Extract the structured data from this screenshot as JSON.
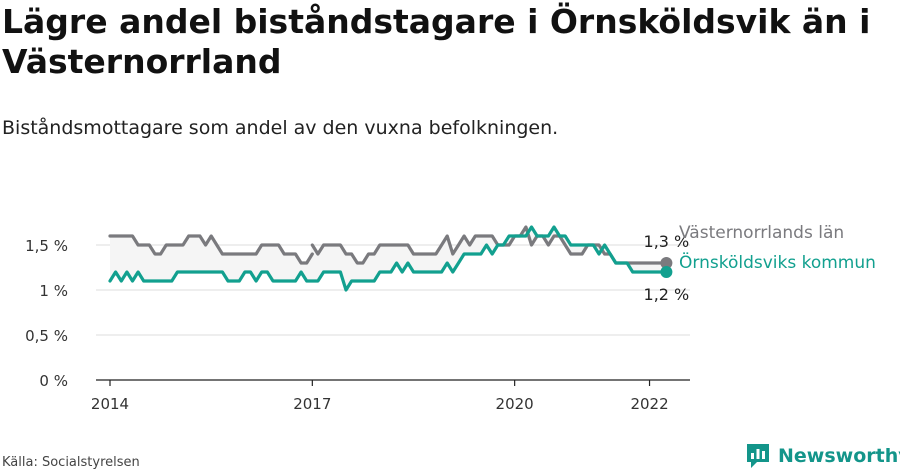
{
  "title": "Lägre andel biståndstagare i Örnsköldsvik än i Västernorrland",
  "subtitle": "Biståndsmottagare som andel av den vuxna befolkningen.",
  "source": "Källa: Socialstyrelsen",
  "brand": {
    "name": "Newsworthy",
    "icon": "newsworthy-logo-icon"
  },
  "colors": {
    "lan": "#7a7a7e",
    "kommun": "#12a08f",
    "band": "#f5f5f5",
    "grid": "#dddddd"
  },
  "chart_data": {
    "type": "line",
    "xlabel": "",
    "ylabel": "",
    "xlim": [
      2014,
      2022.6
    ],
    "ylim": [
      0,
      1.8
    ],
    "xticks": [
      {
        "value": 2014,
        "label": "2014"
      },
      {
        "value": 2017,
        "label": "2017"
      },
      {
        "value": 2020,
        "label": "2020"
      },
      {
        "value": 2022,
        "label": "2022"
      }
    ],
    "yticks": [
      {
        "value": 0,
        "label": "0 %"
      },
      {
        "value": 0.5,
        "label": "0,5 %"
      },
      {
        "value": 1,
        "label": "1 %"
      },
      {
        "value": 1.5,
        "label": "1,5 %"
      }
    ],
    "grid": true,
    "series": [
      {
        "name": "Västernorrlands län",
        "end_label": "1,3 %",
        "points": [
          [
            2014.0,
            1.6
          ],
          [
            2014.083,
            1.6
          ],
          [
            2014.167,
            1.6
          ],
          [
            2014.25,
            1.6
          ],
          [
            2014.333,
            1.6
          ],
          [
            2014.417,
            1.5
          ],
          [
            2014.5,
            1.5
          ],
          [
            2014.583,
            1.5
          ],
          [
            2014.667,
            1.4
          ],
          [
            2014.75,
            1.4
          ],
          [
            2014.833,
            1.5
          ],
          [
            2014.917,
            1.5
          ],
          [
            2015.0,
            1.5
          ],
          [
            2015.083,
            1.5
          ],
          [
            2015.167,
            1.6
          ],
          [
            2015.25,
            1.6
          ],
          [
            2015.333,
            1.6
          ],
          [
            2015.417,
            1.5
          ],
          [
            2015.5,
            1.6
          ],
          [
            2015.583,
            1.5
          ],
          [
            2015.667,
            1.4
          ],
          [
            2015.75,
            1.4
          ],
          [
            2015.833,
            1.4
          ],
          [
            2015.917,
            1.4
          ],
          [
            2016.0,
            1.4
          ],
          [
            2016.083,
            1.4
          ],
          [
            2016.167,
            1.4
          ],
          [
            2016.25,
            1.5
          ],
          [
            2016.333,
            1.5
          ],
          [
            2016.417,
            1.5
          ],
          [
            2016.5,
            1.5
          ],
          [
            2016.583,
            1.4
          ],
          [
            2016.667,
            1.4
          ],
          [
            2016.75,
            1.4
          ],
          [
            2016.833,
            1.3
          ],
          [
            2016.917,
            1.3
          ],
          [
            2017.0,
            1.4
          ],
          null,
          [
            2017.0,
            1.5
          ],
          [
            2017.083,
            1.4
          ],
          [
            2017.167,
            1.5
          ],
          [
            2017.25,
            1.5
          ],
          [
            2017.333,
            1.5
          ],
          [
            2017.417,
            1.5
          ],
          [
            2017.5,
            1.4
          ],
          [
            2017.583,
            1.4
          ],
          [
            2017.667,
            1.3
          ],
          [
            2017.75,
            1.3
          ],
          [
            2017.833,
            1.4
          ],
          [
            2017.917,
            1.4
          ],
          [
            2018.0,
            1.5
          ],
          [
            2018.083,
            1.5
          ],
          [
            2018.167,
            1.5
          ],
          [
            2018.25,
            1.5
          ],
          [
            2018.333,
            1.5
          ],
          [
            2018.417,
            1.5
          ],
          [
            2018.5,
            1.4
          ],
          [
            2018.583,
            1.4
          ],
          [
            2018.667,
            1.4
          ],
          [
            2018.75,
            1.4
          ],
          [
            2018.833,
            1.4
          ],
          [
            2018.917,
            1.5
          ],
          [
            2019.0,
            1.6
          ],
          [
            2019.083,
            1.4
          ],
          [
            2019.167,
            1.5
          ],
          [
            2019.25,
            1.6
          ],
          [
            2019.333,
            1.5
          ],
          [
            2019.417,
            1.6
          ],
          [
            2019.5,
            1.6
          ],
          [
            2019.583,
            1.6
          ],
          [
            2019.667,
            1.6
          ],
          [
            2019.75,
            1.5
          ],
          [
            2019.833,
            1.5
          ],
          [
            2019.917,
            1.5
          ],
          [
            2020.0,
            1.6
          ],
          [
            2020.083,
            1.6
          ],
          [
            2020.167,
            1.7
          ],
          [
            2020.25,
            1.5
          ],
          [
            2020.333,
            1.6
          ],
          [
            2020.417,
            1.6
          ],
          [
            2020.5,
            1.5
          ],
          [
            2020.583,
            1.6
          ],
          [
            2020.667,
            1.6
          ],
          [
            2020.75,
            1.5
          ],
          [
            2020.833,
            1.4
          ],
          [
            2020.917,
            1.4
          ],
          [
            2021.0,
            1.4
          ],
          [
            2021.083,
            1.5
          ],
          [
            2021.167,
            1.5
          ],
          [
            2021.25,
            1.5
          ],
          [
            2021.333,
            1.4
          ],
          [
            2021.417,
            1.4
          ],
          [
            2021.5,
            1.3
          ],
          [
            2021.583,
            1.3
          ],
          [
            2021.667,
            1.3
          ],
          [
            2021.75,
            1.3
          ],
          [
            2021.833,
            1.3
          ],
          [
            2021.917,
            1.3
          ],
          [
            2022.0,
            1.3
          ],
          [
            2022.083,
            1.3
          ],
          [
            2022.167,
            1.3
          ],
          [
            2022.25,
            1.3
          ]
        ]
      },
      {
        "name": "Örnsköldsviks kommun",
        "end_label": "1,2 %",
        "points": [
          [
            2014.0,
            1.1
          ],
          [
            2014.083,
            1.2
          ],
          [
            2014.167,
            1.1
          ],
          [
            2014.25,
            1.2
          ],
          [
            2014.333,
            1.1
          ],
          [
            2014.417,
            1.2
          ],
          [
            2014.5,
            1.1
          ],
          [
            2014.583,
            1.1
          ],
          [
            2014.667,
            1.1
          ],
          [
            2014.75,
            1.1
          ],
          [
            2014.833,
            1.1
          ],
          [
            2014.917,
            1.1
          ],
          [
            2015.0,
            1.2
          ],
          [
            2015.083,
            1.2
          ],
          [
            2015.167,
            1.2
          ],
          [
            2015.25,
            1.2
          ],
          [
            2015.333,
            1.2
          ],
          [
            2015.417,
            1.2
          ],
          [
            2015.5,
            1.2
          ],
          [
            2015.583,
            1.2
          ],
          [
            2015.667,
            1.2
          ],
          [
            2015.75,
            1.1
          ],
          [
            2015.833,
            1.1
          ],
          [
            2015.917,
            1.1
          ],
          [
            2016.0,
            1.2
          ],
          [
            2016.083,
            1.2
          ],
          [
            2016.167,
            1.1
          ],
          [
            2016.25,
            1.2
          ],
          [
            2016.333,
            1.2
          ],
          [
            2016.417,
            1.1
          ],
          [
            2016.5,
            1.1
          ],
          [
            2016.583,
            1.1
          ],
          [
            2016.667,
            1.1
          ],
          [
            2016.75,
            1.1
          ],
          [
            2016.833,
            1.2
          ],
          [
            2016.917,
            1.1
          ],
          [
            2017.0,
            1.1
          ],
          [
            2017.083,
            1.1
          ],
          [
            2017.167,
            1.2
          ],
          [
            2017.25,
            1.2
          ],
          [
            2017.333,
            1.2
          ],
          [
            2017.417,
            1.2
          ],
          [
            2017.5,
            1.0
          ],
          [
            2017.583,
            1.1
          ],
          [
            2017.667,
            1.1
          ],
          [
            2017.75,
            1.1
          ],
          [
            2017.833,
            1.1
          ],
          [
            2017.917,
            1.1
          ],
          [
            2018.0,
            1.2
          ],
          [
            2018.083,
            1.2
          ],
          [
            2018.167,
            1.2
          ],
          [
            2018.25,
            1.3
          ],
          [
            2018.333,
            1.2
          ],
          [
            2018.417,
            1.3
          ],
          [
            2018.5,
            1.2
          ],
          [
            2018.583,
            1.2
          ],
          [
            2018.667,
            1.2
          ],
          [
            2018.75,
            1.2
          ],
          [
            2018.833,
            1.2
          ],
          [
            2018.917,
            1.2
          ],
          [
            2019.0,
            1.3
          ],
          [
            2019.083,
            1.2
          ],
          [
            2019.167,
            1.3
          ],
          [
            2019.25,
            1.4
          ],
          [
            2019.333,
            1.4
          ],
          [
            2019.417,
            1.4
          ],
          [
            2019.5,
            1.4
          ],
          [
            2019.583,
            1.5
          ],
          [
            2019.667,
            1.4
          ],
          [
            2019.75,
            1.5
          ],
          [
            2019.833,
            1.5
          ],
          [
            2019.917,
            1.6
          ],
          [
            2020.0,
            1.6
          ],
          [
            2020.083,
            1.6
          ],
          [
            2020.167,
            1.6
          ],
          [
            2020.25,
            1.7
          ],
          [
            2020.333,
            1.6
          ],
          [
            2020.417,
            1.6
          ],
          [
            2020.5,
            1.6
          ],
          [
            2020.583,
            1.7
          ],
          [
            2020.667,
            1.6
          ],
          [
            2020.75,
            1.6
          ],
          [
            2020.833,
            1.5
          ],
          [
            2020.917,
            1.5
          ],
          [
            2021.0,
            1.5
          ],
          [
            2021.083,
            1.5
          ],
          [
            2021.167,
            1.5
          ],
          [
            2021.25,
            1.4
          ],
          [
            2021.333,
            1.5
          ],
          [
            2021.417,
            1.4
          ],
          [
            2021.5,
            1.3
          ],
          [
            2021.583,
            1.3
          ],
          [
            2021.667,
            1.3
          ],
          [
            2021.75,
            1.2
          ],
          [
            2021.833,
            1.2
          ],
          [
            2021.917,
            1.2
          ],
          [
            2022.0,
            1.2
          ],
          [
            2022.083,
            1.2
          ],
          [
            2022.167,
            1.2
          ],
          [
            2022.25,
            1.2
          ]
        ]
      }
    ]
  }
}
